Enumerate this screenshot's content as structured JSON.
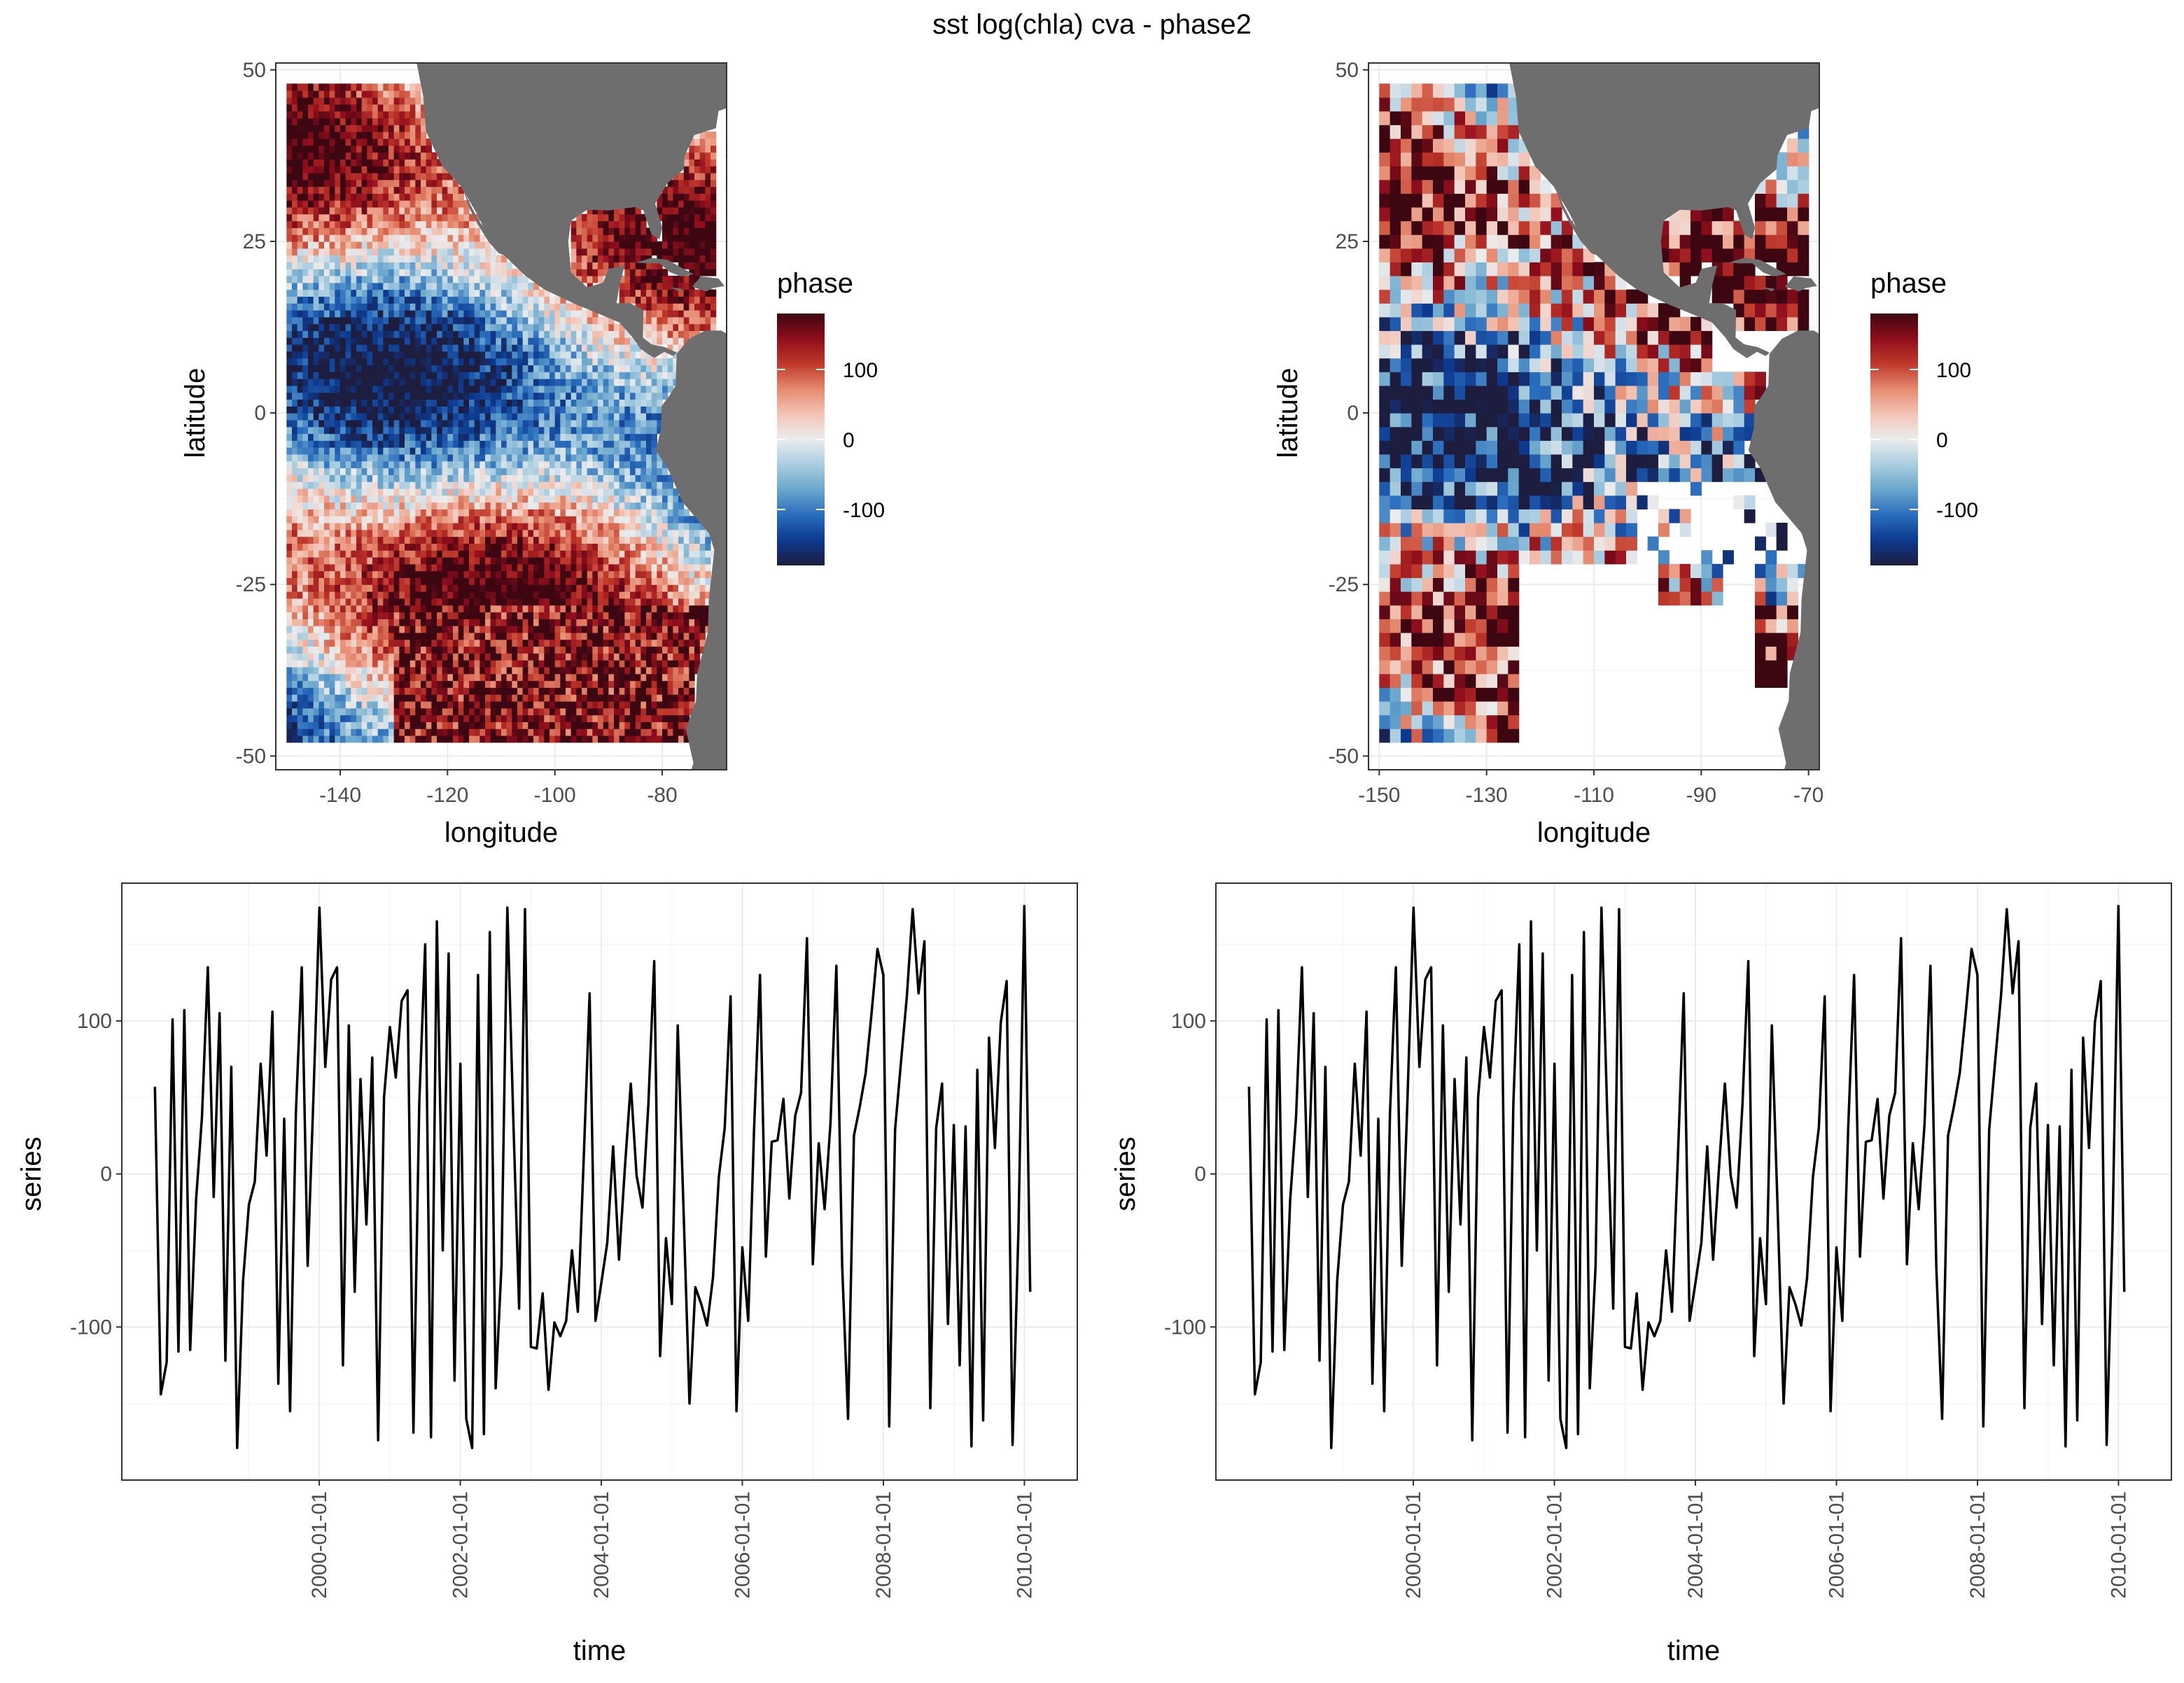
{
  "figure": {
    "title": "sst log(chla) cva - phase2"
  },
  "colors": {
    "land": "#6e6e6e",
    "line": "#000000",
    "panel_border": "#333333",
    "grid_major": "#ebebeb",
    "grid_minor": "#f5f5f5",
    "phase_scale": [
      "#1c1d3f",
      "#0d3a8f",
      "#2a6dbd",
      "#6aa6cc",
      "#a9cde0",
      "#ebeced",
      "#f3c5b6",
      "#e58a6f",
      "#c0392b",
      "#8e0d1b",
      "#3d0712"
    ]
  },
  "chart_data": [
    {
      "type": "heatmap",
      "panel": "top-left map",
      "xlabel": "longitude",
      "ylabel": "latitude",
      "xlim": [
        -152,
        -68
      ],
      "ylim": [
        -52,
        51
      ],
      "x_ticks": [
        "-140",
        "-120",
        "-100",
        "-80"
      ],
      "y_ticks": [
        "-50",
        "-25",
        "0",
        "25",
        "50"
      ],
      "grid_resolution_deg": 1,
      "fill_variable": "phase",
      "legend": {
        "title": "phase",
        "labels": [
          "100",
          "0",
          "-100"
        ],
        "range": [
          -180,
          180
        ],
        "placement": "right"
      }
    },
    {
      "type": "heatmap",
      "panel": "top-right map",
      "xlabel": "longitude",
      "ylabel": "latitude",
      "xlim": [
        -152,
        -68
      ],
      "ylim": [
        -52,
        51
      ],
      "x_ticks": [
        "-150",
        "-130",
        "-110",
        "-90",
        "-70"
      ],
      "y_ticks": [
        "-50",
        "-25",
        "0",
        "25",
        "50"
      ],
      "grid_resolution_deg": 2,
      "fill_variable": "phase",
      "legend": {
        "title": "phase",
        "labels": [
          "100",
          "0",
          "-100"
        ],
        "range": [
          -180,
          180
        ],
        "placement": "right"
      }
    },
    {
      "type": "line",
      "panel": "bottom-left series",
      "xlabel": "time",
      "ylabel": "series",
      "ylim": [
        -200,
        190
      ],
      "x_ticks": [
        "2000-01-01",
        "2002-01-01",
        "2004-01-01",
        "2006-01-01",
        "2008-01-01",
        "2010-01-01"
      ],
      "y_ticks": [
        "100",
        "0",
        "-100"
      ],
      "x_range_years": [
        1997.2,
        2010.75
      ],
      "start_year": 1997.67,
      "step_years": 0.0833,
      "values": [
        57,
        -144,
        -123,
        101,
        -116,
        107,
        -115,
        -17,
        37,
        135,
        -15,
        105,
        -122,
        70,
        -179,
        -70,
        -20,
        -5,
        72,
        12,
        106,
        -137,
        36,
        -155,
        40,
        135,
        -60,
        52,
        174,
        70,
        127,
        135,
        -125,
        97,
        -77,
        62,
        -33,
        76,
        -174,
        50,
        96,
        63,
        113,
        120,
        -169,
        47,
        150,
        -172,
        165,
        -50,
        144,
        -135,
        72,
        -160,
        -179,
        130,
        -170,
        158,
        -140,
        -60,
        174,
        37,
        -88,
        173,
        -113,
        -114,
        -78,
        -141,
        -97,
        -106,
        -96,
        -50,
        -90,
        10,
        118,
        -96,
        -71,
        -45,
        18,
        -56,
        4,
        59,
        -1,
        -22,
        45,
        139,
        -119,
        -42,
        -85,
        97,
        -25,
        -150,
        -74,
        -85,
        -99,
        -68,
        -2,
        30,
        116,
        -155,
        -48,
        -96,
        30,
        130,
        -54,
        21,
        22,
        49,
        -16,
        38,
        53,
        154,
        -59,
        20,
        -23,
        33,
        136,
        -60,
        -160,
        25,
        44,
        66,
        105,
        147,
        130,
        -165,
        29,
        73,
        116,
        173,
        118,
        152,
        -153,
        30,
        59,
        -98,
        32,
        -125,
        31,
        -178,
        68,
        -161,
        89,
        17,
        99,
        126,
        -177,
        -37,
        175,
        -77
      ]
    },
    {
      "type": "line",
      "panel": "bottom-right series",
      "xlabel": "time",
      "ylabel": "series",
      "ylim": [
        -200,
        190
      ],
      "x_ticks": [
        "2000-01-01",
        "2002-01-01",
        "2004-01-01",
        "2006-01-01",
        "2008-01-01",
        "2010-01-01"
      ],
      "y_ticks": [
        "100",
        "0",
        "-100"
      ],
      "x_range_years": [
        1997.2,
        2010.75
      ],
      "start_year": 1997.67,
      "step_years": 0.0833,
      "values": [
        57,
        -144,
        -123,
        101,
        -116,
        107,
        -115,
        -17,
        37,
        135,
        -15,
        105,
        -122,
        70,
        -179,
        -70,
        -20,
        -5,
        72,
        12,
        106,
        -137,
        36,
        -155,
        40,
        135,
        -60,
        52,
        174,
        70,
        127,
        135,
        -125,
        97,
        -77,
        62,
        -33,
        76,
        -174,
        50,
        96,
        63,
        113,
        120,
        -169,
        47,
        150,
        -172,
        165,
        -50,
        144,
        -135,
        72,
        -160,
        -179,
        130,
        -170,
        158,
        -140,
        -60,
        174,
        37,
        -88,
        173,
        -113,
        -114,
        -78,
        -141,
        -97,
        -106,
        -96,
        -50,
        -90,
        10,
        118,
        -96,
        -71,
        -45,
        18,
        -56,
        4,
        59,
        -1,
        -22,
        45,
        139,
        -119,
        -42,
        -85,
        97,
        -25,
        -150,
        -74,
        -85,
        -99,
        -68,
        -2,
        30,
        116,
        -155,
        -48,
        -96,
        30,
        130,
        -54,
        21,
        22,
        49,
        -16,
        38,
        53,
        154,
        -59,
        20,
        -23,
        33,
        136,
        -60,
        -160,
        25,
        44,
        66,
        105,
        147,
        130,
        -165,
        29,
        73,
        116,
        173,
        118,
        152,
        -153,
        30,
        59,
        -98,
        32,
        -125,
        31,
        -178,
        68,
        -161,
        89,
        17,
        99,
        126,
        -177,
        -37,
        175,
        -77
      ]
    }
  ]
}
